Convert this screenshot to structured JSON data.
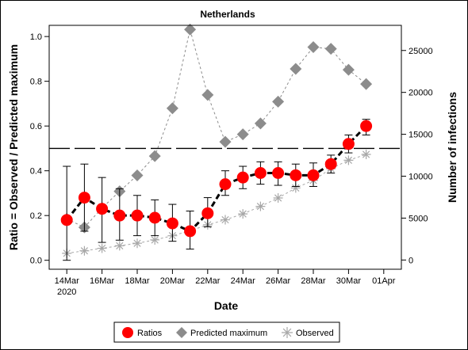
{
  "chart_data": {
    "type": "line",
    "title": "Netherlands",
    "xlabel": "Date",
    "ylabel": "Ratio = Observed / Predicted maximum",
    "y2label": "Number of infections",
    "x_dates": [
      "2020-03-14",
      "2020-03-15",
      "2020-03-16",
      "2020-03-17",
      "2020-03-18",
      "2020-03-19",
      "2020-03-20",
      "2020-03-21",
      "2020-03-22",
      "2020-03-23",
      "2020-03-24",
      "2020-03-25",
      "2020-03-26",
      "2020-03-27",
      "2020-03-28",
      "2020-03-29",
      "2020-03-30",
      "2020-03-31"
    ],
    "x_tick_dates": [
      "2020-03-14",
      "2020-03-16",
      "2020-03-18",
      "2020-03-20",
      "2020-03-22",
      "2020-03-24",
      "2020-03-26",
      "2020-03-28",
      "2020-03-30",
      "2020-04-01"
    ],
    "x_tick_labels": [
      "14Mar",
      "16Mar",
      "18Mar",
      "20Mar",
      "22Mar",
      "24Mar",
      "26Mar",
      "28Mar",
      "30Mar",
      "01Apr"
    ],
    "x_year_label": "2020",
    "xlim": [
      "2020-03-13",
      "2020-04-02"
    ],
    "ylim": [
      -0.04,
      1.05
    ],
    "y_ticks": [
      0.0,
      0.2,
      0.4,
      0.6,
      0.8,
      1.0
    ],
    "y_tick_labels": [
      "0.0",
      "0.2",
      "0.4",
      "0.6",
      "0.8",
      "1.0"
    ],
    "y2lim": [
      -1100,
      28000
    ],
    "y2_ticks": [
      0,
      5000,
      10000,
      15000,
      20000,
      25000
    ],
    "y2_tick_labels": [
      "0",
      "5000",
      "10000",
      "15000",
      "20000",
      "25000"
    ],
    "reference_line": 0.5,
    "series": [
      {
        "name": "Ratios",
        "axis": "left",
        "values": [
          0.18,
          0.28,
          0.23,
          0.2,
          0.2,
          0.19,
          0.165,
          0.13,
          0.21,
          0.34,
          0.37,
          0.39,
          0.39,
          0.38,
          0.38,
          0.43,
          0.52,
          0.6
        ],
        "err_low": [
          0.0,
          0.13,
          0.08,
          0.09,
          0.11,
          0.11,
          0.085,
          0.05,
          0.15,
          0.29,
          0.32,
          0.34,
          0.335,
          0.33,
          0.33,
          0.39,
          0.48,
          0.56
        ],
        "err_high": [
          0.42,
          0.43,
          0.37,
          0.32,
          0.29,
          0.27,
          0.25,
          0.22,
          0.28,
          0.4,
          0.42,
          0.44,
          0.44,
          0.43,
          0.435,
          0.47,
          0.56,
          0.63
        ],
        "color": "#ff0000"
      },
      {
        "name": "Predicted maximum",
        "axis": "right",
        "values": [
          4900,
          3900,
          6200,
          8200,
          10100,
          12400,
          18100,
          27500,
          19700,
          14100,
          15000,
          16300,
          18900,
          22800,
          25400,
          25200,
          22700,
          21000
        ],
        "color": "#8c8c8c"
      },
      {
        "name": "Observed",
        "axis": "right",
        "values": [
          800,
          1100,
          1400,
          1700,
          2000,
          2400,
          2900,
          3500,
          4200,
          4800,
          5500,
          6400,
          7400,
          8600,
          9500,
          10900,
          11900,
          12600
        ],
        "color": "#a8a8a8"
      }
    ],
    "legend": {
      "placement": "bottom",
      "entries": [
        "Ratios",
        "Predicted maximum",
        "Observed"
      ]
    },
    "grid": false
  }
}
